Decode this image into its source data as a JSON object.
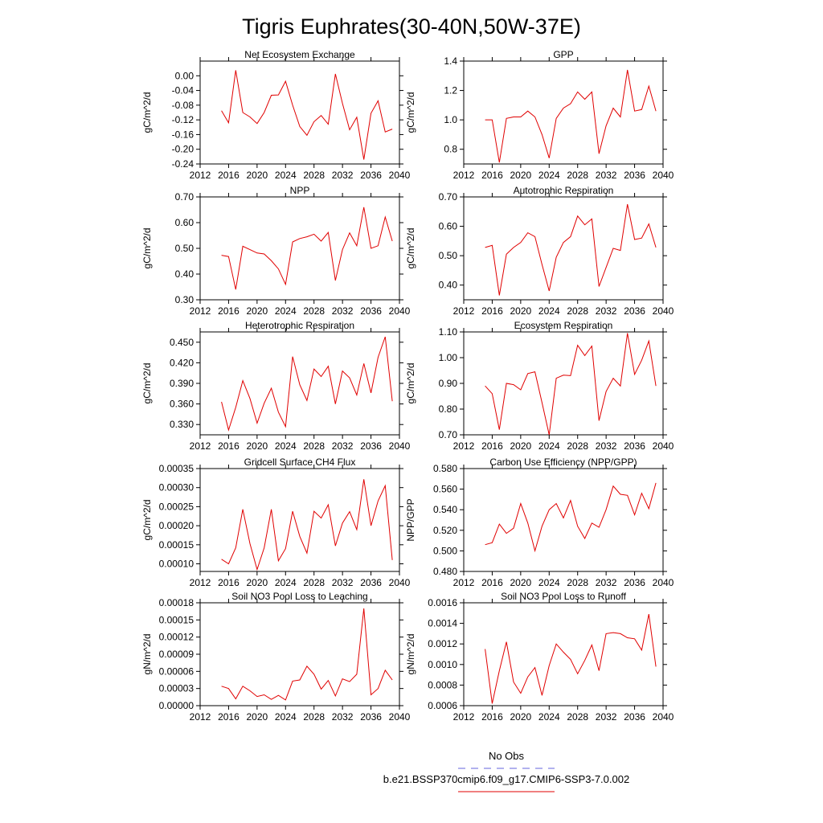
{
  "figure": {
    "title": "Tigris Euphrates(30-40N,50W-37E)",
    "legend": {
      "obs_label": "No Obs",
      "model_label": "b.e21.BSSP370cmip6.f09_g17.CMIP6-SSP3-7.0.002",
      "obs_color": "#6666dd",
      "model_color": "#e00000"
    }
  },
  "chart_data": [
    {
      "type": "line",
      "title": "Net Ecosystem Exchange",
      "ylabel": "gC/m^2/d",
      "xlim": [
        2012,
        2040
      ],
      "ylim": [
        -0.24,
        0.04
      ],
      "yticks": [
        0.0,
        -0.04,
        -0.08,
        -0.12,
        -0.16,
        -0.2,
        -0.24
      ],
      "ytick_labels": [
        "0.00",
        "-0.04",
        "-0.08",
        "-0.12",
        "-0.16",
        "-0.20",
        "-0.24"
      ],
      "xticks": [
        2012,
        2016,
        2020,
        2024,
        2028,
        2032,
        2036,
        2040
      ],
      "x": [
        2015,
        2016,
        2017,
        2018,
        2019,
        2020,
        2021,
        2022,
        2023,
        2024,
        2025,
        2026,
        2027,
        2028,
        2029,
        2030,
        2031,
        2032,
        2033,
        2034,
        2035,
        2036,
        2037,
        2038,
        2039
      ],
      "values": [
        -0.095,
        -0.128,
        0.015,
        -0.1,
        -0.112,
        -0.13,
        -0.1,
        -0.053,
        -0.052,
        -0.015,
        -0.08,
        -0.138,
        -0.162,
        -0.125,
        -0.108,
        -0.132,
        0.005,
        -0.075,
        -0.147,
        -0.113,
        -0.228,
        -0.102,
        -0.068,
        -0.153,
        -0.145
      ]
    },
    {
      "type": "line",
      "title": "GPP",
      "ylabel": "gC/m^2/d",
      "xlim": [
        2012,
        2040
      ],
      "ylim": [
        0.7,
        1.4
      ],
      "yticks": [
        0.8,
        1.0,
        1.2,
        1.4
      ],
      "ytick_labels": [
        "0.8",
        "1.0",
        "1.2",
        "1.4"
      ],
      "xticks": [
        2012,
        2016,
        2020,
        2024,
        2028,
        2032,
        2036,
        2040
      ],
      "x": [
        2015,
        2016,
        2017,
        2018,
        2019,
        2020,
        2021,
        2022,
        2023,
        2024,
        2025,
        2026,
        2027,
        2028,
        2029,
        2030,
        2031,
        2032,
        2033,
        2034,
        2035,
        2036,
        2037,
        2038,
        2039
      ],
      "values": [
        1.0,
        1.0,
        0.71,
        1.01,
        1.02,
        1.02,
        1.06,
        1.02,
        0.9,
        0.74,
        1.01,
        1.08,
        1.11,
        1.19,
        1.14,
        1.19,
        0.77,
        0.96,
        1.08,
        1.02,
        1.34,
        1.06,
        1.07,
        1.23,
        1.06
      ]
    },
    {
      "type": "line",
      "title": "NPP",
      "ylabel": "gC/m^2/d",
      "xlim": [
        2012,
        2040
      ],
      "ylim": [
        0.3,
        0.7
      ],
      "yticks": [
        0.3,
        0.4,
        0.5,
        0.6,
        0.7
      ],
      "ytick_labels": [
        "0.30",
        "0.40",
        "0.50",
        "0.60",
        "0.70"
      ],
      "xticks": [
        2012,
        2016,
        2020,
        2024,
        2028,
        2032,
        2036,
        2040
      ],
      "x": [
        2015,
        2016,
        2017,
        2018,
        2019,
        2020,
        2021,
        2022,
        2023,
        2024,
        2025,
        2026,
        2027,
        2028,
        2029,
        2030,
        2031,
        2032,
        2033,
        2034,
        2035,
        2036,
        2037,
        2038,
        2039
      ],
      "values": [
        0.473,
        0.468,
        0.34,
        0.508,
        0.495,
        0.482,
        0.478,
        0.452,
        0.42,
        0.36,
        0.525,
        0.538,
        0.545,
        0.555,
        0.528,
        0.562,
        0.375,
        0.495,
        0.56,
        0.51,
        0.66,
        0.5,
        0.51,
        0.622,
        0.528
      ]
    },
    {
      "type": "line",
      "title": "Autotrophic Respiration",
      "ylabel": "gC/m^2/d",
      "xlim": [
        2012,
        2040
      ],
      "ylim": [
        0.35,
        0.7
      ],
      "yticks": [
        0.4,
        0.5,
        0.6,
        0.7
      ],
      "ytick_labels": [
        "0.40",
        "0.50",
        "0.60",
        "0.70"
      ],
      "xticks": [
        2012,
        2016,
        2020,
        2024,
        2028,
        2032,
        2036,
        2040
      ],
      "x": [
        2015,
        2016,
        2017,
        2018,
        2019,
        2020,
        2021,
        2022,
        2023,
        2024,
        2025,
        2026,
        2027,
        2028,
        2029,
        2030,
        2031,
        2032,
        2033,
        2034,
        2035,
        2036,
        2037,
        2038,
        2039
      ],
      "values": [
        0.528,
        0.535,
        0.365,
        0.505,
        0.528,
        0.545,
        0.578,
        0.565,
        0.47,
        0.38,
        0.495,
        0.545,
        0.565,
        0.635,
        0.605,
        0.625,
        0.395,
        0.46,
        0.525,
        0.518,
        0.675,
        0.555,
        0.56,
        0.608,
        0.528
      ]
    },
    {
      "type": "line",
      "title": "Heterotrophic Respiration",
      "ylabel": "gC/m^2/d",
      "xlim": [
        2012,
        2040
      ],
      "ylim": [
        0.315,
        0.465
      ],
      "yticks": [
        0.33,
        0.36,
        0.39,
        0.42,
        0.45
      ],
      "ytick_labels": [
        "0.330",
        "0.360",
        "0.390",
        "0.420",
        "0.450"
      ],
      "xticks": [
        2012,
        2016,
        2020,
        2024,
        2028,
        2032,
        2036,
        2040
      ],
      "x": [
        2015,
        2016,
        2017,
        2018,
        2019,
        2020,
        2021,
        2022,
        2023,
        2024,
        2025,
        2026,
        2027,
        2028,
        2029,
        2030,
        2031,
        2032,
        2033,
        2034,
        2035,
        2036,
        2037,
        2038,
        2039
      ],
      "values": [
        0.363,
        0.322,
        0.355,
        0.394,
        0.368,
        0.332,
        0.361,
        0.383,
        0.348,
        0.327,
        0.429,
        0.388,
        0.365,
        0.411,
        0.4,
        0.415,
        0.36,
        0.408,
        0.398,
        0.373,
        0.419,
        0.376,
        0.428,
        0.458,
        0.364
      ]
    },
    {
      "type": "line",
      "title": "Ecosystem Respiration",
      "ylabel": "gC/m^2/d",
      "xlim": [
        2012,
        2040
      ],
      "ylim": [
        0.7,
        1.1
      ],
      "yticks": [
        0.7,
        0.8,
        0.9,
        1.0,
        1.1
      ],
      "ytick_labels": [
        "0.70",
        "0.80",
        "0.90",
        "1.00",
        "1.10"
      ],
      "xticks": [
        2012,
        2016,
        2020,
        2024,
        2028,
        2032,
        2036,
        2040
      ],
      "x": [
        2015,
        2016,
        2017,
        2018,
        2019,
        2020,
        2021,
        2022,
        2023,
        2024,
        2025,
        2026,
        2027,
        2028,
        2029,
        2030,
        2031,
        2032,
        2033,
        2034,
        2035,
        2036,
        2037,
        2038,
        2039
      ],
      "values": [
        0.89,
        0.86,
        0.72,
        0.9,
        0.895,
        0.875,
        0.938,
        0.945,
        0.825,
        0.7,
        0.92,
        0.932,
        0.93,
        1.048,
        1.008,
        1.045,
        0.755,
        0.868,
        0.92,
        0.89,
        1.095,
        0.935,
        0.99,
        1.065,
        0.89
      ]
    },
    {
      "type": "line",
      "title": "Gridcell Surface CH4 Flux",
      "ylabel": "gC/m^2/d",
      "xlim": [
        2012,
        2040
      ],
      "ylim": [
        8e-05,
        0.00035
      ],
      "yticks": [
        0.0001,
        0.00015,
        0.0002,
        0.00025,
        0.0003,
        0.00035
      ],
      "ytick_labels": [
        "0.00010",
        "0.00015",
        "0.00020",
        "0.00025",
        "0.00030",
        "0.00035"
      ],
      "xticks": [
        2012,
        2016,
        2020,
        2024,
        2028,
        2032,
        2036,
        2040
      ],
      "x": [
        2015,
        2016,
        2017,
        2018,
        2019,
        2020,
        2021,
        2022,
        2023,
        2024,
        2025,
        2026,
        2027,
        2028,
        2029,
        2030,
        2031,
        2032,
        2033,
        2034,
        2035,
        2036,
        2037,
        2038,
        2039
      ],
      "values": [
        0.000112,
        0.0001,
        0.000142,
        0.000243,
        0.000153,
        8.5e-05,
        0.000142,
        0.000243,
        0.000108,
        0.00014,
        0.000238,
        0.000172,
        0.000128,
        0.000238,
        0.00022,
        0.000255,
        0.000147,
        0.000207,
        0.000237,
        0.00019,
        0.000322,
        0.0002,
        0.000265,
        0.000305,
        0.00011
      ]
    },
    {
      "type": "line",
      "title": "Carbon Use Efficiency (NPP/GPP)",
      "ylabel": "NPP/GPP",
      "xlim": [
        2012,
        2040
      ],
      "ylim": [
        0.48,
        0.58
      ],
      "yticks": [
        0.48,
        0.5,
        0.52,
        0.54,
        0.56,
        0.58
      ],
      "ytick_labels": [
        "0.480",
        "0.500",
        "0.520",
        "0.540",
        "0.560",
        "0.580"
      ],
      "xticks": [
        2012,
        2016,
        2020,
        2024,
        2028,
        2032,
        2036,
        2040
      ],
      "x": [
        2015,
        2016,
        2017,
        2018,
        2019,
        2020,
        2021,
        2022,
        2023,
        2024,
        2025,
        2026,
        2027,
        2028,
        2029,
        2030,
        2031,
        2032,
        2033,
        2034,
        2035,
        2036,
        2037,
        2038,
        2039
      ],
      "values": [
        0.506,
        0.508,
        0.526,
        0.517,
        0.522,
        0.546,
        0.527,
        0.5,
        0.524,
        0.54,
        0.546,
        0.532,
        0.549,
        0.524,
        0.512,
        0.527,
        0.523,
        0.54,
        0.563,
        0.555,
        0.554,
        0.535,
        0.556,
        0.541,
        0.566
      ]
    },
    {
      "type": "line",
      "title": "Soil NO3 Pool Loss to Leaching",
      "ylabel": "gN/m^2/d",
      "xlim": [
        2012,
        2040
      ],
      "ylim": [
        0.0,
        0.00018
      ],
      "yticks": [
        0.0,
        3e-05,
        6e-05,
        9e-05,
        0.00012,
        0.00015,
        0.00018
      ],
      "ytick_labels": [
        "0.00000",
        "0.00003",
        "0.00006",
        "0.00009",
        "0.00012",
        "0.00015",
        "0.00018"
      ],
      "xticks": [
        2012,
        2016,
        2020,
        2024,
        2028,
        2032,
        2036,
        2040
      ],
      "x": [
        2015,
        2016,
        2017,
        2018,
        2019,
        2020,
        2021,
        2022,
        2023,
        2024,
        2025,
        2026,
        2027,
        2028,
        2029,
        2030,
        2031,
        2032,
        2033,
        2034,
        2035,
        2036,
        2037,
        2038,
        2039
      ],
      "values": [
        3.4e-05,
        3e-05,
        1.2e-05,
        3.4e-05,
        2.6e-05,
        1.6e-05,
        1.9e-05,
        1.1e-05,
        1.8e-05,
        1e-05,
        4.3e-05,
        4.5e-05,
        6.9e-05,
        5.5e-05,
        2.9e-05,
        4.4e-05,
        1.7e-05,
        4.7e-05,
        4.2e-05,
        5.5e-05,
        0.00017,
        1.9e-05,
        3e-05,
        6.2e-05,
        4.5e-05
      ]
    },
    {
      "type": "line",
      "title": "Soil NO3 Pool Loss to Runoff",
      "ylabel": "gN/m^2/d",
      "xlim": [
        2012,
        2040
      ],
      "ylim": [
        0.0006,
        0.0016
      ],
      "yticks": [
        0.0006,
        0.0008,
        0.001,
        0.0012,
        0.0014,
        0.0016
      ],
      "ytick_labels": [
        "0.0006",
        "0.0008",
        "0.0010",
        "0.0012",
        "0.0014",
        "0.0016"
      ],
      "xticks": [
        2012,
        2016,
        2020,
        2024,
        2028,
        2032,
        2036,
        2040
      ],
      "x": [
        2015,
        2016,
        2017,
        2018,
        2019,
        2020,
        2021,
        2022,
        2023,
        2024,
        2025,
        2026,
        2027,
        2028,
        2029,
        2030,
        2031,
        2032,
        2033,
        2034,
        2035,
        2036,
        2037,
        2038,
        2039
      ],
      "values": [
        0.00115,
        0.00062,
        0.00094,
        0.00122,
        0.00083,
        0.00072,
        0.00088,
        0.00097,
        0.0007,
        0.00099,
        0.0012,
        0.00112,
        0.00105,
        0.00091,
        0.00104,
        0.00119,
        0.00094,
        0.0013,
        0.00131,
        0.0013,
        0.00126,
        0.00125,
        0.00114,
        0.00149,
        0.00098
      ]
    }
  ]
}
